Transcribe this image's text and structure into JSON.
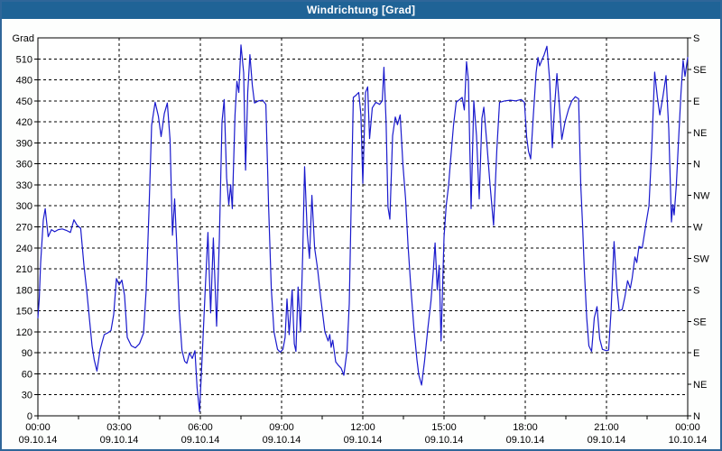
{
  "window": {
    "title": "Windrichtung [Grad]"
  },
  "colors": {
    "titlebar_bg": "#1f6396",
    "titlebar_text": "#ffffff",
    "outer_border": "#2f6699",
    "plot_bg": "#ffffff",
    "grid": "#000000",
    "axis": "#000000",
    "line": "#1a1acd"
  },
  "chart_data": {
    "type": "line",
    "title": "Windrichtung [Grad]",
    "ylabel": "Grad",
    "ylim": [
      0,
      540
    ],
    "y_major_step": 30,
    "y_left_tick_labels": [
      "0",
      "30",
      "60",
      "90",
      "120",
      "150",
      "180",
      "210",
      "240",
      "270",
      "300",
      "330",
      "360",
      "390",
      "420",
      "450",
      "480",
      "510"
    ],
    "y_right_compass": [
      {
        "value": 540,
        "label": "S"
      },
      {
        "value": 495,
        "label": "SE"
      },
      {
        "value": 450,
        "label": "E"
      },
      {
        "value": 405,
        "label": "NE"
      },
      {
        "value": 360,
        "label": "N"
      },
      {
        "value": 315,
        "label": "NW"
      },
      {
        "value": 270,
        "label": "W"
      },
      {
        "value": 225,
        "label": "SW"
      },
      {
        "value": 180,
        "label": "S"
      },
      {
        "value": 135,
        "label": "SE"
      },
      {
        "value": 90,
        "label": "E"
      },
      {
        "value": 45,
        "label": "NE"
      },
      {
        "value": 0,
        "label": "N"
      }
    ],
    "xlim_hours": [
      0,
      24
    ],
    "x_gridline_step_hours": 3,
    "x_minor_tick_step_hours": 1.5,
    "x_ticks": [
      {
        "hours": 0,
        "time": "00:00",
        "date": "09.10.14"
      },
      {
        "hours": 3,
        "time": "03:00",
        "date": "09.10.14"
      },
      {
        "hours": 6,
        "time": "06:00",
        "date": "09.10.14"
      },
      {
        "hours": 9,
        "time": "09:00",
        "date": "09.10.14"
      },
      {
        "hours": 12,
        "time": "12:00",
        "date": "09.10.14"
      },
      {
        "hours": 15,
        "time": "15:00",
        "date": "09.10.14"
      },
      {
        "hours": 18,
        "time": "18:00",
        "date": "09.10.14"
      },
      {
        "hours": 21,
        "time": "21:00",
        "date": "09.10.14"
      },
      {
        "hours": 24,
        "time": "00:00",
        "date": "10.10.14"
      }
    ],
    "grid": "dashed",
    "legend": "none",
    "series": [
      {
        "name": "Windrichtung",
        "color": "#1a1acd",
        "points": [
          [
            0,
            140
          ],
          [
            0.05,
            167
          ],
          [
            0.1,
            218
          ],
          [
            0.2,
            280
          ],
          [
            0.27,
            296
          ],
          [
            0.38,
            256
          ],
          [
            0.5,
            266
          ],
          [
            0.62,
            263
          ],
          [
            0.75,
            266
          ],
          [
            0.9,
            267
          ],
          [
            1.05,
            265
          ],
          [
            1.2,
            262
          ],
          [
            1.33,
            280
          ],
          [
            1.45,
            272
          ],
          [
            1.58,
            268
          ],
          [
            1.7,
            215
          ],
          [
            1.8,
            180
          ],
          [
            1.9,
            140
          ],
          [
            2,
            100
          ],
          [
            2.08,
            80
          ],
          [
            2.18,
            64
          ],
          [
            2.3,
            95
          ],
          [
            2.45,
            116
          ],
          [
            2.6,
            119
          ],
          [
            2.7,
            122
          ],
          [
            2.8,
            145
          ],
          [
            2.9,
            196
          ],
          [
            3,
            187
          ],
          [
            3.1,
            194
          ],
          [
            3.2,
            172
          ],
          [
            3.3,
            112
          ],
          [
            3.45,
            100
          ],
          [
            3.6,
            97
          ],
          [
            3.75,
            103
          ],
          [
            3.9,
            118
          ],
          [
            4,
            180
          ],
          [
            4.1,
            290
          ],
          [
            4.2,
            415
          ],
          [
            4.33,
            448
          ],
          [
            4.45,
            428
          ],
          [
            4.55,
            399
          ],
          [
            4.67,
            432
          ],
          [
            4.78,
            447
          ],
          [
            4.88,
            395
          ],
          [
            4.97,
            258
          ],
          [
            5.05,
            310
          ],
          [
            5.12,
            252
          ],
          [
            5.22,
            150
          ],
          [
            5.32,
            94
          ],
          [
            5.42,
            78
          ],
          [
            5.5,
            75
          ],
          [
            5.6,
            90
          ],
          [
            5.7,
            82
          ],
          [
            5.8,
            93
          ],
          [
            5.88,
            40
          ],
          [
            5.97,
            6
          ],
          [
            6.08,
            95
          ],
          [
            6.17,
            172
          ],
          [
            6.28,
            262
          ],
          [
            6.38,
            147
          ],
          [
            6.48,
            254
          ],
          [
            6.6,
            128
          ],
          [
            6.7,
            250
          ],
          [
            6.8,
            420
          ],
          [
            6.88,
            452
          ],
          [
            6.97,
            340
          ],
          [
            7.05,
            302
          ],
          [
            7.12,
            330
          ],
          [
            7.18,
            296
          ],
          [
            7.28,
            430
          ],
          [
            7.35,
            478
          ],
          [
            7.42,
            462
          ],
          [
            7.5,
            530
          ],
          [
            7.6,
            490
          ],
          [
            7.67,
            351
          ],
          [
            7.75,
            462
          ],
          [
            7.83,
            516
          ],
          [
            7.92,
            472
          ],
          [
            8,
            447
          ],
          [
            8.15,
            450
          ],
          [
            8.3,
            451
          ],
          [
            8.42,
            445
          ],
          [
            8.52,
            300
          ],
          [
            8.62,
            182
          ],
          [
            8.72,
            120
          ],
          [
            8.85,
            95
          ],
          [
            8.95,
            91
          ],
          [
            9.05,
            95
          ],
          [
            9.13,
            112
          ],
          [
            9.2,
            167
          ],
          [
            9.28,
            116
          ],
          [
            9.39,
            180
          ],
          [
            9.47,
            103
          ],
          [
            9.53,
            92
          ],
          [
            9.61,
            184
          ],
          [
            9.7,
            120
          ],
          [
            9.78,
            230
          ],
          [
            9.85,
            356
          ],
          [
            9.95,
            260
          ],
          [
            10.03,
            225
          ],
          [
            10.12,
            315
          ],
          [
            10.22,
            240
          ],
          [
            10.33,
            210
          ],
          [
            10.45,
            167
          ],
          [
            10.6,
            120
          ],
          [
            10.72,
            107
          ],
          [
            10.78,
            116
          ],
          [
            10.83,
            98
          ],
          [
            10.89,
            108
          ],
          [
            11,
            77
          ],
          [
            11.1,
            72
          ],
          [
            11.2,
            68
          ],
          [
            11.3,
            58
          ],
          [
            11.42,
            94
          ],
          [
            11.5,
            160
          ],
          [
            11.57,
            300
          ],
          [
            11.65,
            455
          ],
          [
            11.75,
            458
          ],
          [
            11.85,
            462
          ],
          [
            11.93,
            430
          ],
          [
            12,
            332
          ],
          [
            12.1,
            462
          ],
          [
            12.18,
            470
          ],
          [
            12.25,
            396
          ],
          [
            12.35,
            440
          ],
          [
            12.48,
            448
          ],
          [
            12.62,
            445
          ],
          [
            12.72,
            450
          ],
          [
            12.78,
            498
          ],
          [
            12.86,
            420
          ],
          [
            12.93,
            298
          ],
          [
            13,
            281
          ],
          [
            13.1,
            400
          ],
          [
            13.2,
            427
          ],
          [
            13.28,
            416
          ],
          [
            13.38,
            430
          ],
          [
            13.48,
            360
          ],
          [
            13.58,
            310
          ],
          [
            13.67,
            244
          ],
          [
            13.78,
            180
          ],
          [
            13.89,
            124
          ],
          [
            14,
            80
          ],
          [
            14.07,
            58
          ],
          [
            14.17,
            44
          ],
          [
            14.28,
            78
          ],
          [
            14.4,
            124
          ],
          [
            14.52,
            165
          ],
          [
            14.6,
            205
          ],
          [
            14.67,
            247
          ],
          [
            14.75,
            180
          ],
          [
            14.82,
            215
          ],
          [
            14.89,
            107
          ],
          [
            15,
            255
          ],
          [
            15.08,
            300
          ],
          [
            15.17,
            330
          ],
          [
            15.25,
            369
          ],
          [
            15.35,
            415
          ],
          [
            15.45,
            448
          ],
          [
            15.58,
            452
          ],
          [
            15.67,
            455
          ],
          [
            15.75,
            437
          ],
          [
            15.83,
            506
          ],
          [
            15.9,
            480
          ],
          [
            16,
            296
          ],
          [
            16.1,
            450
          ],
          [
            16.2,
            400
          ],
          [
            16.3,
            310
          ],
          [
            16.4,
            425
          ],
          [
            16.47,
            441
          ],
          [
            16.58,
            390
          ],
          [
            16.7,
            330
          ],
          [
            16.83,
            272
          ],
          [
            16.95,
            380
          ],
          [
            17.05,
            448
          ],
          [
            17.25,
            450
          ],
          [
            17.45,
            451
          ],
          [
            17.65,
            450
          ],
          [
            17.85,
            452
          ],
          [
            17.97,
            448
          ],
          [
            18.05,
            399
          ],
          [
            18.12,
            378
          ],
          [
            18.2,
            367
          ],
          [
            18.3,
            430
          ],
          [
            18.4,
            490
          ],
          [
            18.47,
            512
          ],
          [
            18.53,
            500
          ],
          [
            18.6,
            507
          ],
          [
            18.7,
            516
          ],
          [
            18.8,
            528
          ],
          [
            18.9,
            480
          ],
          [
            19,
            383
          ],
          [
            19.08,
            440
          ],
          [
            19.17,
            489
          ],
          [
            19.27,
            438
          ],
          [
            19.35,
            395
          ],
          [
            19.47,
            420
          ],
          [
            19.6,
            438
          ],
          [
            19.72,
            450
          ],
          [
            19.85,
            456
          ],
          [
            19.97,
            453
          ],
          [
            20.05,
            330
          ],
          [
            20.12,
            270
          ],
          [
            20.18,
            210
          ],
          [
            20.27,
            140
          ],
          [
            20.35,
            100
          ],
          [
            20.45,
            92
          ],
          [
            20.55,
            140
          ],
          [
            20.65,
            156
          ],
          [
            20.75,
            110
          ],
          [
            20.85,
            95
          ],
          [
            21,
            93
          ],
          [
            21.08,
            94
          ],
          [
            21.17,
            150
          ],
          [
            21.28,
            249
          ],
          [
            21.38,
            185
          ],
          [
            21.47,
            150
          ],
          [
            21.58,
            152
          ],
          [
            21.68,
            170
          ],
          [
            21.78,
            193
          ],
          [
            21.88,
            182
          ],
          [
            21.95,
            197
          ],
          [
            22.05,
            227
          ],
          [
            22.12,
            219
          ],
          [
            22.2,
            242
          ],
          [
            22.32,
            240
          ],
          [
            22.45,
            272
          ],
          [
            22.57,
            300
          ],
          [
            22.68,
            390
          ],
          [
            22.78,
            491
          ],
          [
            22.88,
            455
          ],
          [
            22.97,
            430
          ],
          [
            23.08,
            455
          ],
          [
            23.2,
            486
          ],
          [
            23.3,
            410
          ],
          [
            23.4,
            277
          ],
          [
            23.45,
            302
          ],
          [
            23.5,
            287
          ],
          [
            23.58,
            330
          ],
          [
            23.67,
            400
          ],
          [
            23.75,
            460
          ],
          [
            23.83,
            508
          ],
          [
            23.9,
            485
          ],
          [
            24,
            512
          ]
        ]
      }
    ]
  }
}
